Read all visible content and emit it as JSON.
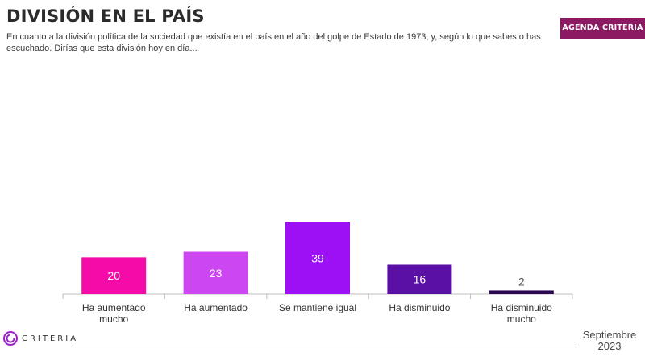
{
  "header": {
    "title": "DIVISIÓN EN EL PAÍS",
    "subtitle": "En cuanto a la división política de la sociedad que existía en el país en el año del golpe de Estado de 1973, y, según lo que sabes o has escuchado. Dirías que esta división hoy en día...",
    "badge": "AGENDA CRITERIA"
  },
  "footer": {
    "brand": "CRITERIA",
    "date_line1": "Septiembre",
    "date_line2": "2023"
  },
  "colors": {
    "badge": "#8b1a63",
    "logo": "#a020c8"
  },
  "chart_data": {
    "type": "bar",
    "title": "DIVISIÓN EN EL PAÍS",
    "xlabel": "",
    "ylabel": "",
    "ylim": [
      0,
      39
    ],
    "grid": false,
    "legend": "none",
    "categories": [
      [
        "Ha aumentado",
        "mucho"
      ],
      [
        "Ha aumentado"
      ],
      [
        "Se mantiene igual"
      ],
      [
        "Ha disminuido"
      ],
      [
        "Ha disminuido",
        "mucho"
      ]
    ],
    "values": [
      20,
      23,
      39,
      16,
      2
    ],
    "colors": [
      "#f50ca8",
      "#cc47f2",
      "#9d0ff5",
      "#5a0fa5",
      "#2a0650"
    ],
    "label_colors": [
      "#ffffff",
      "#ffffff",
      "#ffffff",
      "#ffffff",
      "#555555"
    ]
  }
}
